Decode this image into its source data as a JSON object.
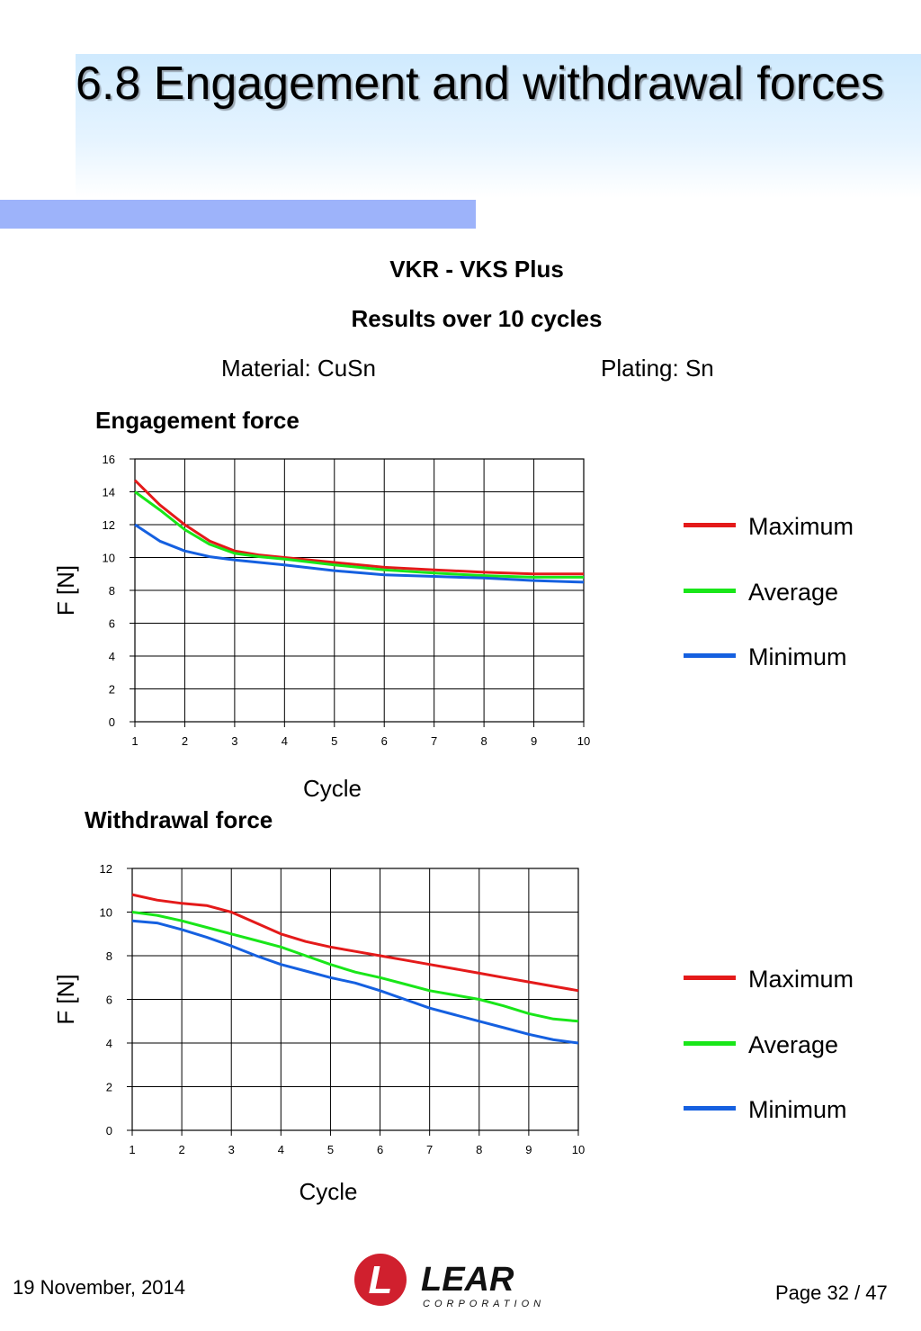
{
  "title": " 6.8 Engagement and withdrawal forces",
  "header": {
    "line1": "VKR - VKS  Plus",
    "line2": "Results over 10 cycles",
    "material": "Material: CuSn",
    "plating": "Plating: Sn"
  },
  "colors": {
    "maximum": "#e41a1a",
    "average": "#19e619",
    "minimum": "#1560e0",
    "band": "#9db3fa"
  },
  "chart_data": [
    {
      "type": "line",
      "title": "Engagement force",
      "xlabel": "Cycle",
      "ylabel": "F [N]",
      "xlim": [
        1,
        10
      ],
      "ylim": [
        0,
        16
      ],
      "x_ticks": [
        "1",
        "2",
        "3",
        "4",
        "5",
        "6",
        "7",
        "8",
        "9",
        "10"
      ],
      "y_ticks": [
        "0",
        "2",
        "4",
        "6",
        "8",
        "10",
        "12",
        "14",
        "16"
      ],
      "grid": true,
      "legend": "right",
      "x": [
        1,
        1.5,
        2,
        2.5,
        3,
        3.5,
        4,
        5,
        6,
        7,
        8,
        9,
        10
      ],
      "series": [
        {
          "name": "Maximum",
          "color": "#e41a1a",
          "values": [
            14.7,
            13.2,
            12.0,
            11.0,
            10.4,
            10.15,
            10.0,
            9.7,
            9.4,
            9.25,
            9.1,
            9.0,
            9.0
          ]
        },
        {
          "name": "Average",
          "color": "#19e619",
          "values": [
            14.0,
            12.9,
            11.7,
            10.8,
            10.25,
            10.05,
            9.9,
            9.55,
            9.25,
            9.05,
            8.9,
            8.8,
            8.8
          ]
        },
        {
          "name": "Minimum",
          "color": "#1560e0",
          "values": [
            12.0,
            11.0,
            10.4,
            10.05,
            9.85,
            9.7,
            9.55,
            9.2,
            8.95,
            8.85,
            8.75,
            8.6,
            8.5
          ]
        }
      ]
    },
    {
      "type": "line",
      "title": "Withdrawal force",
      "xlabel": "Cycle",
      "ylabel": "F [N]",
      "xlim": [
        1,
        10
      ],
      "ylim": [
        0,
        12
      ],
      "x_ticks": [
        "1",
        "2",
        "3",
        "4",
        "5",
        "6",
        "7",
        "8",
        "9",
        "10"
      ],
      "y_ticks": [
        "0",
        "2",
        "4",
        "6",
        "8",
        "10",
        "12"
      ],
      "grid": true,
      "legend": "right",
      "x": [
        1,
        1.5,
        2,
        2.5,
        3,
        3.5,
        4,
        4.5,
        5,
        5.5,
        6,
        6.5,
        7,
        7.5,
        8,
        8.5,
        9,
        9.5,
        10
      ],
      "series": [
        {
          "name": "Maximum",
          "color": "#e41a1a",
          "values": [
            10.8,
            10.55,
            10.4,
            10.3,
            10.0,
            9.5,
            9.0,
            8.65,
            8.4,
            8.2,
            8.0,
            7.8,
            7.6,
            7.4,
            7.2,
            7.0,
            6.8,
            6.6,
            6.4
          ]
        },
        {
          "name": "Average",
          "color": "#19e619",
          "values": [
            10.0,
            9.85,
            9.6,
            9.3,
            9.0,
            8.7,
            8.4,
            8.0,
            7.6,
            7.25,
            7.0,
            6.7,
            6.4,
            6.2,
            6.0,
            5.7,
            5.35,
            5.1,
            5.0
          ]
        },
        {
          "name": "Minimum",
          "color": "#1560e0",
          "values": [
            9.6,
            9.5,
            9.2,
            8.85,
            8.45,
            8.0,
            7.6,
            7.3,
            7.0,
            6.75,
            6.4,
            6.0,
            5.6,
            5.3,
            5.0,
            4.7,
            4.4,
            4.15,
            4.0
          ]
        }
      ]
    }
  ],
  "footer": {
    "date": "19 November, 2014",
    "page": "Page 32 / 47"
  },
  "logo": {
    "name": "LEAR",
    "sub": "CORPORATION",
    "mark": "L"
  }
}
